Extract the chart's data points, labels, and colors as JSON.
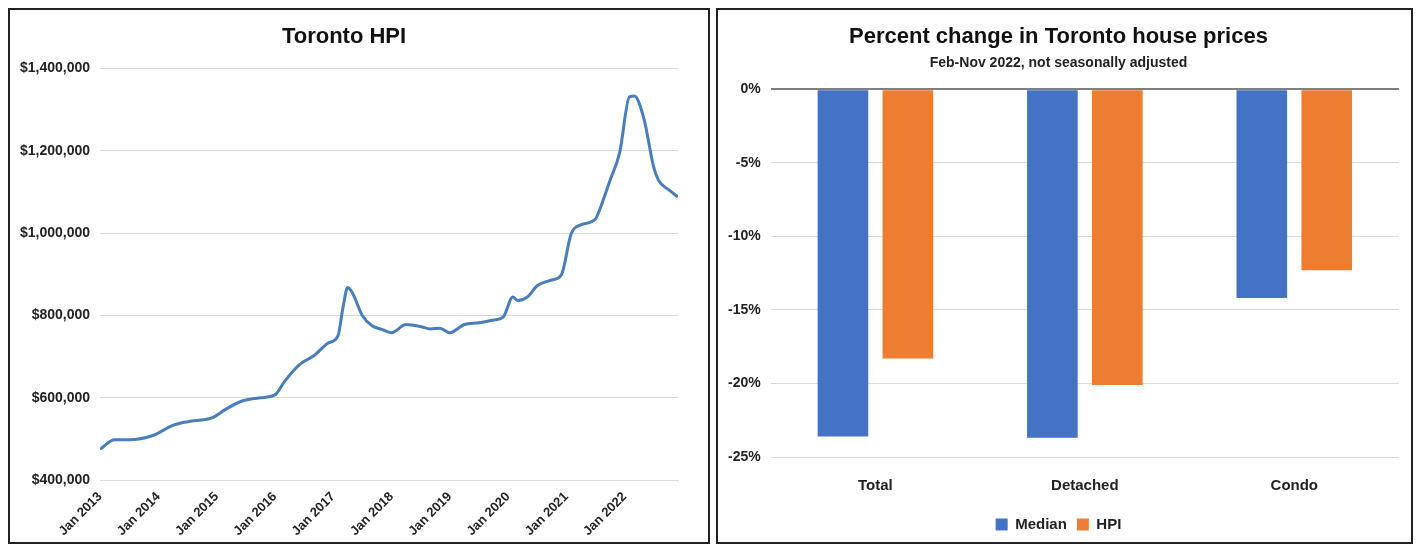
{
  "chart_data": [
    {
      "type": "line",
      "title": "Toronto HPI",
      "x": [
        "2013-01",
        "2013-04",
        "2013-07",
        "2013-12",
        "2014-04",
        "2014-07",
        "2014-12",
        "2015-03",
        "2015-06",
        "2015-10",
        "2016-01",
        "2016-03",
        "2016-06",
        "2016-09",
        "2016-12",
        "2017-02",
        "2017-03",
        "2017-04",
        "2017-05",
        "2017-07",
        "2017-09",
        "2017-11",
        "2018-01",
        "2018-04",
        "2018-07",
        "2018-09",
        "2018-11",
        "2019-01",
        "2019-04",
        "2019-07",
        "2019-10",
        "2019-12",
        "2020-02",
        "2020-03",
        "2020-05",
        "2020-07",
        "2020-10",
        "2020-12",
        "2021-02",
        "2021-04",
        "2021-07",
        "2021-08",
        "2021-10",
        "2021-12",
        "2022-02",
        "2022-03",
        "2022-05",
        "2022-07",
        "2022-08",
        "2022-10",
        "2022-12"
      ],
      "series": [
        {
          "color": "#4a7ebb",
          "values": [
            475000,
            498000,
            498000,
            509000,
            533000,
            542000,
            551000,
            573000,
            591000,
            600000,
            607000,
            640000,
            680000,
            702000,
            733000,
            751000,
            818000,
            868000,
            854000,
            800000,
            775000,
            766000,
            758000,
            778000,
            773000,
            767000,
            769000,
            758000,
            778000,
            782000,
            789000,
            796000,
            845000,
            836000,
            845000,
            872000,
            886000,
            899000,
            998000,
            1020000,
            1034000,
            1061000,
            1128000,
            1196000,
            1331000,
            1333000,
            1277000,
            1160000,
            1128000,
            1106000,
            1088000
          ]
        }
      ],
      "xlim": [
        "2013-01",
        "2022-12"
      ],
      "xticks": [
        {
          "value": "2013-01",
          "label": "Jan 2013"
        },
        {
          "value": "2014-01",
          "label": "Jan 2014"
        },
        {
          "value": "2015-01",
          "label": "Jan 2015"
        },
        {
          "value": "2016-01",
          "label": "Jan 2016"
        },
        {
          "value": "2017-01",
          "label": "Jan 2017"
        },
        {
          "value": "2018-01",
          "label": "Jan 2018"
        },
        {
          "value": "2019-01",
          "label": "Jan 2019"
        },
        {
          "value": "2020-01",
          "label": "Jan 2020"
        },
        {
          "value": "2021-01",
          "label": "Jan 2021"
        },
        {
          "value": "2022-01",
          "label": "Jan 2022"
        }
      ],
      "ylim": [
        400000,
        1400000
      ],
      "yticks": [
        {
          "value": 400000,
          "label": "$400,000"
        },
        {
          "value": 600000,
          "label": "$600,000"
        },
        {
          "value": 800000,
          "label": "$800,000"
        },
        {
          "value": 1000000,
          "label": "$1,000,000"
        },
        {
          "value": 1200000,
          "label": "$1,200,000"
        },
        {
          "value": 1400000,
          "label": "$1,400,000"
        }
      ],
      "grid": "y",
      "marker": "none",
      "legend": false
    },
    {
      "type": "bar",
      "title": "Percent change in Toronto house prices",
      "subtitle": "Feb-Nov 2022, not seasonally adjusted",
      "categories": [
        "Total",
        "Detached",
        "Condo"
      ],
      "series": [
        {
          "name": "Median",
          "color": "#4472c4",
          "values": [
            -23.6,
            -23.7,
            -14.2
          ]
        },
        {
          "name": "HPI",
          "color": "#ed7d31",
          "values": [
            -18.3,
            -20.1,
            -12.3
          ]
        }
      ],
      "ylim": [
        -25,
        0
      ],
      "yticks": [
        {
          "value": 0,
          "label": "0%"
        },
        {
          "value": -5,
          "label": "-5%"
        },
        {
          "value": -10,
          "label": "-10%"
        },
        {
          "value": -15,
          "label": "-15%"
        },
        {
          "value": -20,
          "label": "-20%"
        },
        {
          "value": -25,
          "label": "-25%"
        }
      ],
      "grid": "y",
      "legend": "bottom"
    }
  ]
}
